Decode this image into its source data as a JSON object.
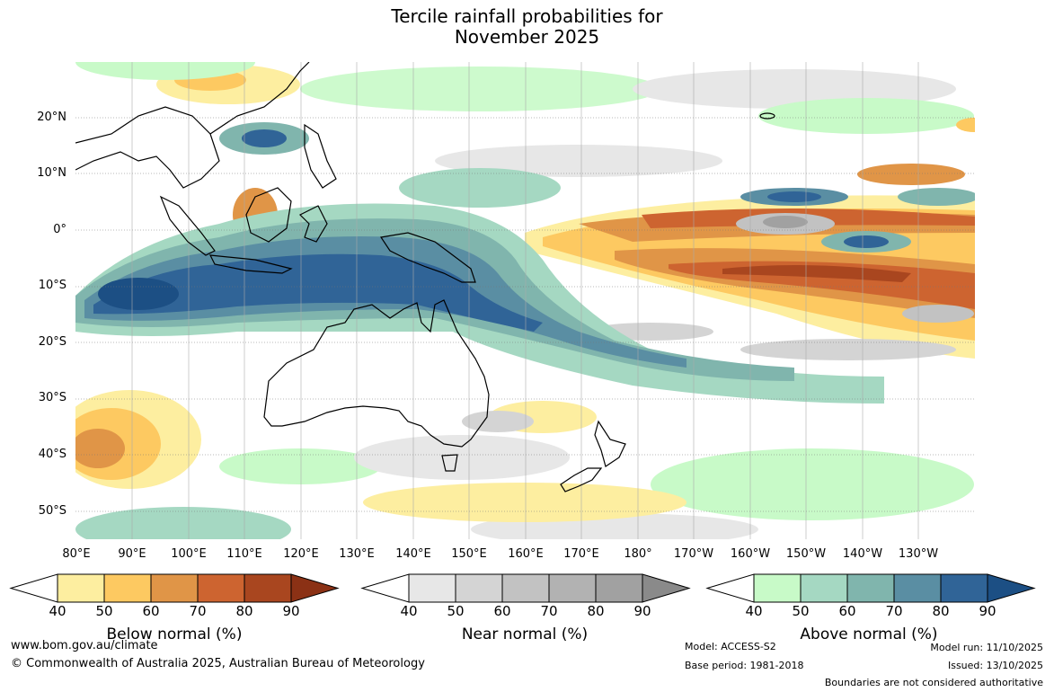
{
  "title": {
    "line1": "Tercile rainfall probabilities for",
    "line2": "November 2025"
  },
  "map": {
    "lat_labels": [
      "20°N",
      "10°N",
      "0°",
      "10°S",
      "20°S",
      "30°S",
      "40°S",
      "50°S"
    ],
    "lon_labels": [
      "80°E",
      "90°E",
      "100°E",
      "110°E",
      "120°E",
      "130°E",
      "140°E",
      "150°E",
      "160°E",
      "170°E",
      "180°",
      "170°W",
      "160°W",
      "150°W",
      "140°W",
      "130°W"
    ]
  },
  "legends": {
    "below": {
      "label": "Below normal (%)",
      "ticks": [
        "40",
        "50",
        "60",
        "70",
        "80",
        "90"
      ],
      "colors": [
        "#fdeea0",
        "#fdc961",
        "#e09547",
        "#cd6430",
        "#a9461f",
        "#8b3115"
      ]
    },
    "near": {
      "label": "Near normal (%)",
      "ticks": [
        "40",
        "50",
        "60",
        "70",
        "80",
        "90"
      ],
      "colors": [
        "#e7e7e7",
        "#d4d4d4",
        "#c2c2c2",
        "#b2b2b2",
        "#a1a1a1",
        "#8a8a8a"
      ]
    },
    "above": {
      "label": "Above normal (%)",
      "ticks": [
        "40",
        "50",
        "60",
        "70",
        "80",
        "90"
      ],
      "colors": [
        "#c8fac8",
        "#a5d8c2",
        "#80b5ad",
        "#5a8ea3",
        "#306497",
        "#1c4f84"
      ]
    }
  },
  "footer": {
    "website": "www.bom.gov.au/climate",
    "copyright": "© Commonwealth of Australia 2025, Australian Bureau of Meteorology",
    "model": "Model: ACCESS-S2",
    "base_period": "Base period: 1981-2018",
    "model_run": "Model run: 11/10/2025",
    "issued": "Issued: 13/10/2025",
    "boundaries": "Boundaries are not considered authoritative"
  }
}
